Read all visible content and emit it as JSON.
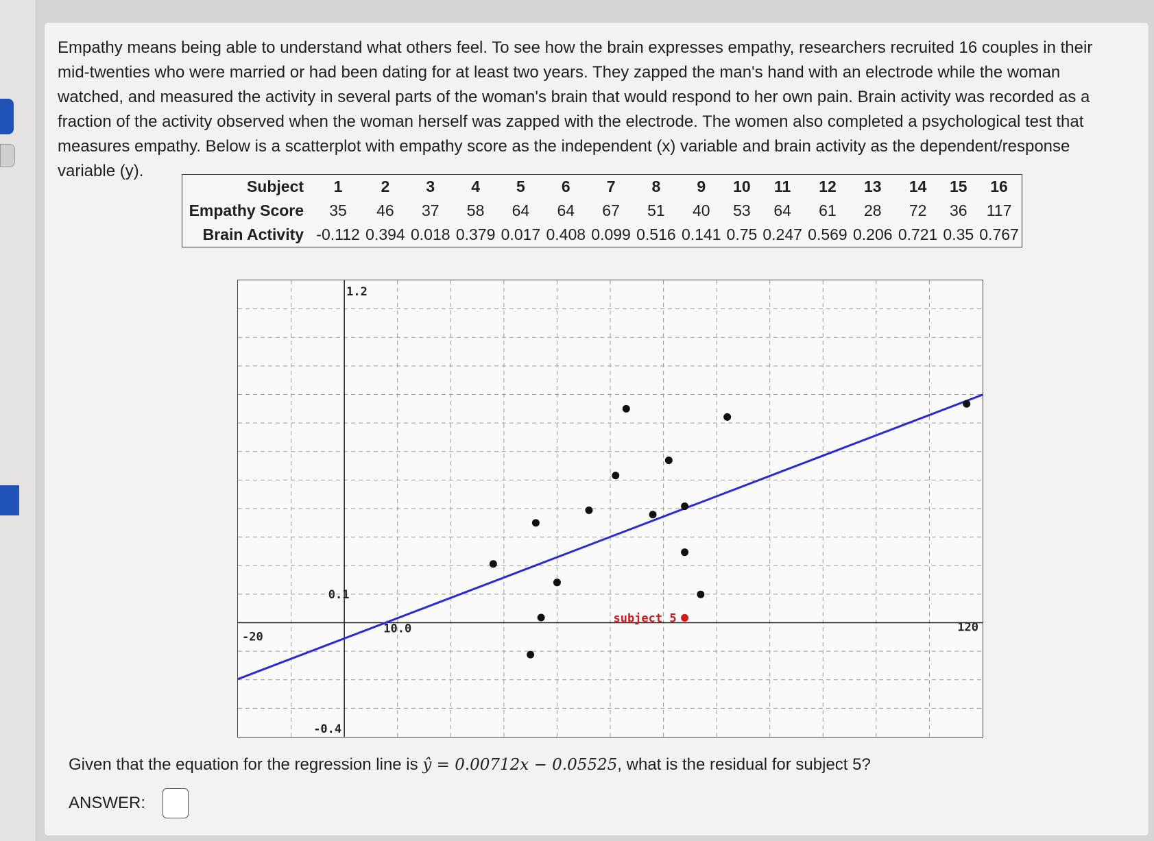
{
  "problem": {
    "text": "Empathy means being able to understand what others feel. To see how the brain expresses empathy, researchers recruited 16 couples in their mid-twenties who were married or had been dating for at least two years. They zapped the man's hand with an electrode while the woman watched, and measured the activity in several parts of the woman's brain that would respond to her own pain. Brain activity was recorded as a fraction of the activity observed when the woman herself was zapped with the electrode. The women also completed a psychological test that measures empathy. Below is a scatterplot with empathy score as the independent (x) variable and brain activity as the dependent/response variable (y)."
  },
  "table": {
    "row_labels": [
      "Subject",
      "Empathy Score",
      "Brain Activity"
    ],
    "subjects": [
      "1",
      "2",
      "3",
      "4",
      "5",
      "6",
      "7",
      "8",
      "9",
      "10",
      "11",
      "12",
      "13",
      "14",
      "15",
      "16"
    ],
    "empathy": [
      "35",
      "46",
      "37",
      "58",
      "64",
      "64",
      "67",
      "51",
      "40",
      "53",
      "64",
      "61",
      "28",
      "72",
      "36",
      "117"
    ],
    "brain": [
      "-0.112",
      "0.394",
      "0.018",
      "0.379",
      "0.017",
      "0.408",
      "0.099",
      "0.516",
      "0.141",
      "0.75",
      "0.247",
      "0.569",
      "0.206",
      "0.721",
      "0.35",
      "0.767"
    ]
  },
  "chart_data": {
    "type": "scatter",
    "xlim": [
      -20,
      120
    ],
    "ylim": [
      -0.4,
      1.2
    ],
    "grid": true,
    "x": [
      35,
      46,
      37,
      58,
      64,
      64,
      67,
      51,
      40,
      53,
      64,
      61,
      28,
      72,
      36,
      117
    ],
    "y": [
      -0.112,
      0.394,
      0.018,
      0.379,
      0.017,
      0.408,
      0.099,
      0.516,
      0.141,
      0.75,
      0.247,
      0.569,
      0.206,
      0.721,
      0.35,
      0.767
    ],
    "regression_line": {
      "slope": 0.00712,
      "intercept": -0.05525
    },
    "highlight": {
      "index": 4,
      "label": "subject 5",
      "color": "#d11a1a"
    },
    "axis_labels": {
      "x_min": "-20",
      "x_max": "120",
      "y_max": "1.2",
      "y_min": "-0.4",
      "y_near": "0.1",
      "x_near": "10.0"
    },
    "point_color": "#111111",
    "line_color": "#2a2ad8"
  },
  "question": {
    "prefix": "Given that the equation for the regression line is ",
    "equation": "ŷ = 0.00712x − 0.05525",
    "suffix": ", what is the residual for subject 5?"
  },
  "answer": {
    "label": "ANSWER:",
    "value": ""
  }
}
